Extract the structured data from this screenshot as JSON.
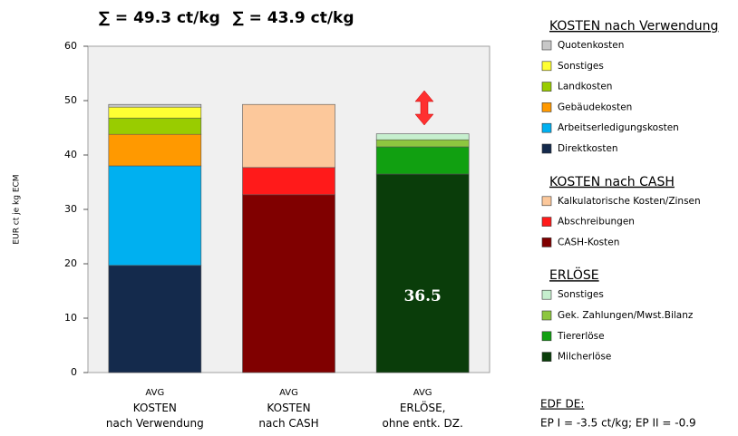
{
  "chart_data": {
    "type": "stacked_bar",
    "y_label": "EUR ct je kg ECM",
    "categories": [
      "AVG\nKOSTEN\nnach Verwendung",
      "AVG\nKOSTEN\nnach CASH",
      "AVG\nERLÖSE,\nohne entk. DZ."
    ],
    "annotations": [
      {
        "text": "∑ = 49.3 ct/kg",
        "color": "#ff2020"
      },
      {
        "text": "∑ = 43.9 ct/kg",
        "color": "#228b22"
      }
    ],
    "ylim": [
      0,
      60
    ],
    "yticks": [
      0,
      10,
      20,
      30,
      40,
      50,
      60
    ],
    "grid": false,
    "groups": [
      {
        "title": "KOSTEN nach Verwendung",
        "series": [
          {
            "name": "Quotenkosten",
            "color": "#c8c8c8",
            "values": [
              0.5,
              null,
              null
            ]
          },
          {
            "name": "Sonstiges",
            "color": "#ffff33",
            "values": [
              2.0,
              null,
              null
            ]
          },
          {
            "name": "Landkosten",
            "color": "#99cc00",
            "values": [
              3.0,
              null,
              null
            ]
          },
          {
            "name": "Gebäudekosten",
            "color": "#ff9900",
            "values": [
              5.8,
              null,
              null
            ]
          },
          {
            "name": "Arbeitserledigungskosten",
            "color": "#00b0f0",
            "values": [
              18.3,
              null,
              null
            ]
          },
          {
            "name": "Direktkosten",
            "color": "#142a4c",
            "values": [
              19.7,
              null,
              null
            ]
          }
        ]
      },
      {
        "title": "KOSTEN nach CASH",
        "series": [
          {
            "name": "Kalkulatorische Kosten/Zinsen",
            "color": "#fcc89b",
            "values": [
              null,
              11.6,
              null
            ]
          },
          {
            "name": "Abschreibungen",
            "color": "#ff1a1a",
            "values": [
              null,
              5.0,
              null
            ]
          },
          {
            "name": "CASH-Kosten",
            "color": "#800000",
            "values": [
              null,
              32.7,
              null
            ]
          }
        ]
      },
      {
        "title": "ERLÖSE",
        "series": [
          {
            "name": "Sonstiges",
            "color": "#c6efce",
            "values": [
              null,
              null,
              1.1
            ]
          },
          {
            "name": "Gek. Zahlungen/Mwst.Bilanz",
            "color": "#8dc63f",
            "values": [
              null,
              null,
              1.3
            ]
          },
          {
            "name": "Tiererlöse",
            "color": "#11a011",
            "values": [
              null,
              null,
              5.0
            ]
          },
          {
            "name": "Milcherlöse",
            "color": "#0a3d0a",
            "values": [
              null,
              null,
              36.5
            ]
          }
        ]
      }
    ],
    "notes": [
      "EDF DE:",
      "EP I = -3.5 ct/kg; EP II = -0.9"
    ]
  }
}
